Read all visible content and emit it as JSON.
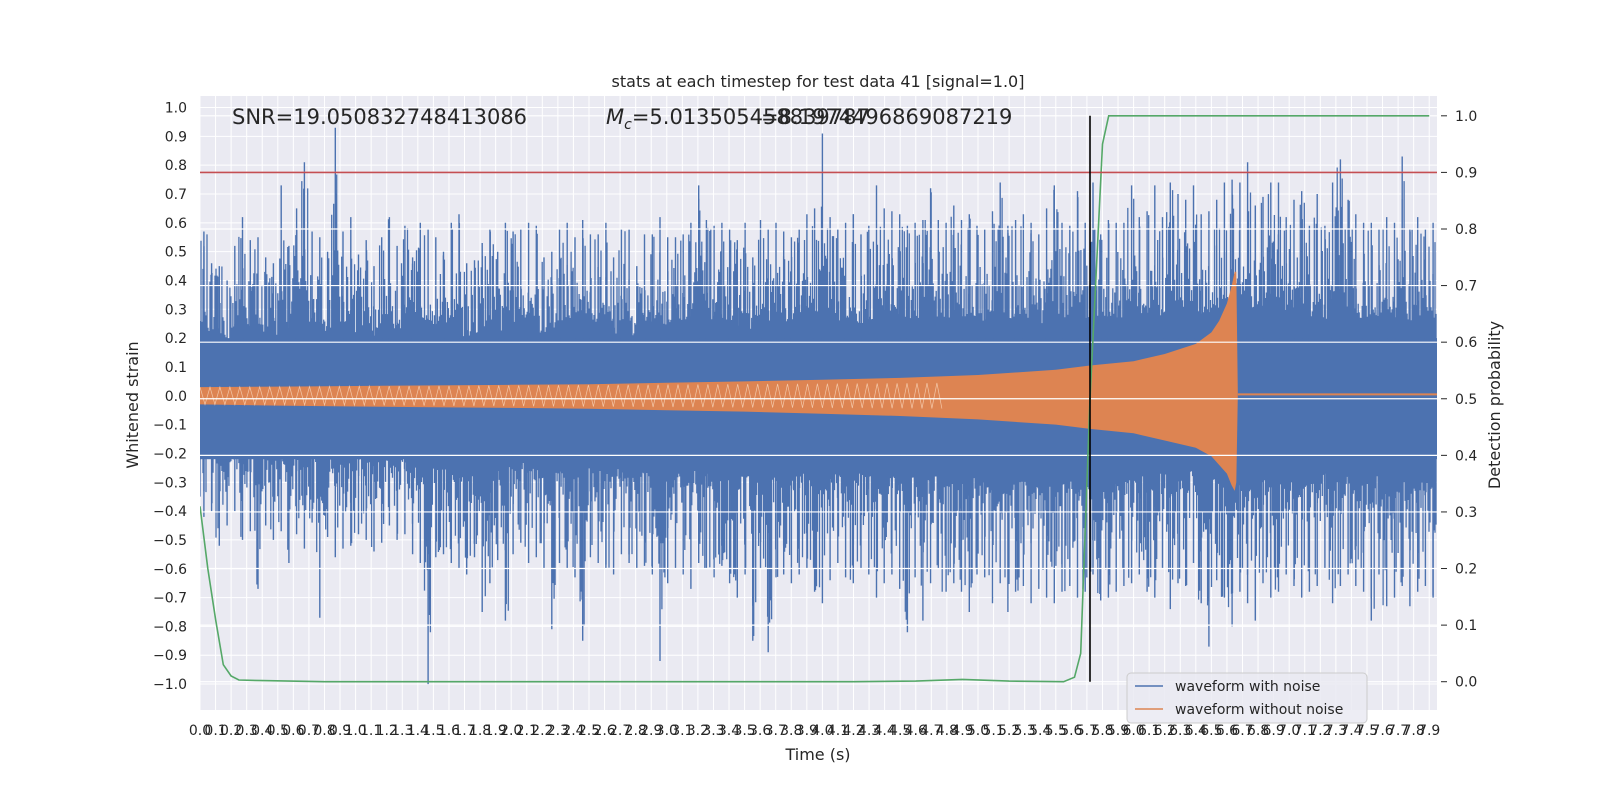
{
  "chart_data": {
    "type": "line",
    "title": "stats at each timestep for test data 41 [signal=1.0]",
    "xlabel": "Time (s)",
    "ylabel": "Whitened strain",
    "y2label": "Detection probability",
    "xlim": [
      0.0,
      7.95
    ],
    "ylim": [
      -1.09,
      1.04
    ],
    "y2lim": [
      -0.05,
      1.035
    ],
    "x_ticks": [
      0.0,
      0.1,
      0.2,
      0.3,
      0.4,
      0.5,
      0.6,
      0.7,
      0.8,
      0.9,
      1.0,
      1.1,
      1.2,
      1.3,
      1.4,
      1.5,
      1.6,
      1.7,
      1.8,
      1.9,
      2.0,
      2.1,
      2.2,
      2.3,
      2.4,
      2.5,
      2.6,
      2.7,
      2.8,
      2.9,
      3.0,
      3.1,
      3.2,
      3.3,
      3.4,
      3.5,
      3.6,
      3.7,
      3.8,
      3.9,
      4.0,
      4.1,
      4.2,
      4.3,
      4.4,
      4.5,
      4.6,
      4.7,
      4.8,
      4.9,
      5.0,
      5.1,
      5.2,
      5.3,
      5.4,
      5.5,
      5.6,
      5.7,
      5.8,
      5.9,
      6.0,
      6.1,
      6.2,
      6.3,
      6.4,
      6.5,
      6.6,
      6.7,
      6.8,
      6.9,
      7.0,
      7.1,
      7.2,
      7.3,
      7.4,
      7.5,
      7.6,
      7.7,
      7.8,
      7.9
    ],
    "x_tick_labels": [
      "0.0",
      "0.1",
      "0.2",
      "0.3",
      "0.4",
      "0.5",
      "0.6",
      "0.7",
      "0.8",
      "0.9",
      "1.0",
      "1.1",
      "1.2",
      "1.3",
      "1.4",
      "1.5",
      "1.6",
      "1.7",
      "1.8",
      "1.9",
      "2.0",
      "2.1",
      "2.2",
      "2.3",
      "2.4",
      "2.5",
      "2.6",
      "2.7",
      "2.8",
      "2.9",
      "3.0",
      "3.1",
      "3.2",
      "3.3",
      "3.4",
      "3.5",
      "3.6",
      "3.7",
      "3.8",
      "3.9",
      "4.0",
      "4.1",
      "4.2",
      "4.3",
      "4.4",
      "4.5",
      "4.6",
      "4.7",
      "4.8",
      "4.9",
      "5.0",
      "5.1",
      "5.2",
      "5.3",
      "5.4",
      "5.5",
      "5.6",
      "5.7",
      "5.8",
      "5.9",
      "6.0",
      "6.1",
      "6.2",
      "6.3",
      "6.4",
      "6.5",
      "6.6",
      "6.7",
      "6.8",
      "6.9",
      "7.0",
      "7.1",
      "7.2",
      "7.3",
      "7.4",
      "7.5",
      "7.6",
      "7.7",
      "7.8",
      "7.9"
    ],
    "y_ticks": [
      -1.0,
      -0.9,
      -0.8,
      -0.7,
      -0.6,
      -0.5,
      -0.4,
      -0.3,
      -0.2,
      -0.1,
      0.0,
      0.1,
      0.2,
      0.3,
      0.4,
      0.5,
      0.6,
      0.7,
      0.8,
      0.9,
      1.0
    ],
    "y_tick_labels": [
      "−1.0",
      "−0.9",
      "−0.8",
      "−0.7",
      "−0.6",
      "−0.5",
      "−0.4",
      "−0.3",
      "−0.2",
      "−0.1",
      "0.0",
      "0.1",
      "0.2",
      "0.3",
      "0.4",
      "0.5",
      "0.6",
      "0.7",
      "0.8",
      "0.9",
      "1.0"
    ],
    "y2_ticks": [
      0.0,
      0.1,
      0.2,
      0.3,
      0.4,
      0.5,
      0.6,
      0.7,
      0.8,
      0.9,
      1.0
    ],
    "y2_tick_labels": [
      "0.0",
      "0.1",
      "0.2",
      "0.3",
      "0.4",
      "0.5",
      "0.6",
      "0.7",
      "0.8",
      "0.9",
      "1.0"
    ],
    "annotations": {
      "snr": "SNR=19.050832748413086",
      "mc_symbol": "M",
      "mc_subscript": "c",
      "mc_value": "=5.013505458839787",
      "overlap_value": "=8.1974496869087219"
    },
    "threshold": {
      "value": 0.9,
      "axis": "y2",
      "color": "#c44e52"
    },
    "merger_line": {
      "x": 5.72,
      "color": "#000000"
    },
    "noisy_waveform": {
      "name": "waveform with noise",
      "color": "#4c72b0",
      "band_max": [
        0.57,
        0.46,
        0.45,
        0.4,
        0.52,
        0.62,
        0.54,
        0.55,
        0.48,
        0.46,
        0.73,
        0.52,
        0.65,
        0.81,
        0.57,
        0.55,
        0.5,
        0.93,
        0.57,
        0.62,
        0.49,
        0.54,
        0.45,
        0.55,
        0.62,
        0.52,
        0.59,
        0.48,
        0.6,
        0.58,
        0.55,
        0.5,
        0.6,
        0.63,
        0.46,
        0.47,
        0.53,
        0.58,
        0.5,
        0.6,
        0.57,
        0.58,
        0.6,
        0.59,
        0.48,
        0.5,
        0.58,
        0.6,
        0.55,
        0.61,
        0.56,
        0.56,
        0.6,
        0.48,
        0.58,
        0.58,
        0.45,
        0.56,
        0.56,
        0.62,
        0.55,
        0.55,
        0.56,
        0.6,
        0.73,
        0.61,
        0.59,
        0.6,
        0.58,
        0.54,
        0.6,
        0.48,
        0.61,
        0.58,
        0.6,
        0.57,
        0.55,
        0.58,
        0.63,
        0.65,
        0.91,
        0.62,
        0.58,
        0.6,
        0.63,
        0.56,
        0.59,
        0.73,
        0.65,
        0.64,
        0.63,
        0.59,
        0.6,
        0.61,
        0.72,
        0.61,
        0.6,
        0.66,
        0.61,
        0.63,
        0.59,
        0.58,
        0.64,
        0.74,
        0.59,
        0.61,
        0.63,
        0.6,
        0.56,
        0.65,
        0.73,
        0.6,
        0.59,
        0.71,
        0.6,
        0.74,
        0.56,
        0.61,
        0.6,
        0.6,
        0.73,
        0.62,
        0.64,
        0.73,
        0.62,
        0.74,
        0.7,
        0.68,
        0.73,
        0.63,
        0.64,
        0.68,
        0.74,
        0.75,
        0.74,
        0.81,
        0.66,
        0.69,
        0.74,
        0.74,
        0.62,
        0.68,
        0.71,
        0.59,
        0.7,
        0.59,
        0.74,
        0.82,
        0.68,
        0.63,
        0.6,
        0.6,
        0.58,
        0.62,
        0.6,
        0.83,
        0.58,
        0.62,
        0.58,
        0.6
      ],
      "band_min": [
        -0.42,
        -0.4,
        -0.52,
        -0.45,
        -0.4,
        -0.5,
        -0.47,
        -0.67,
        -0.45,
        -0.5,
        -0.47,
        -0.58,
        -0.48,
        -0.53,
        -0.44,
        -0.77,
        -0.49,
        -0.56,
        -0.53,
        -0.52,
        -0.48,
        -0.5,
        -0.54,
        -0.51,
        -0.45,
        -0.5,
        -0.48,
        -0.55,
        -0.58,
        -1.0,
        -0.56,
        -0.55,
        -0.58,
        -0.6,
        -0.62,
        -0.56,
        -0.75,
        -0.65,
        -0.57,
        -0.78,
        -0.55,
        -0.51,
        -0.58,
        -0.56,
        -0.6,
        -0.81,
        -0.58,
        -0.6,
        -0.63,
        -0.85,
        -0.56,
        -0.58,
        -0.6,
        -0.62,
        -0.55,
        -0.58,
        -0.6,
        -0.59,
        -0.62,
        -0.92,
        -0.65,
        -0.6,
        -0.62,
        -0.67,
        -0.58,
        -0.6,
        -0.63,
        -0.59,
        -0.65,
        -0.7,
        -0.62,
        -0.85,
        -0.6,
        -0.89,
        -0.63,
        -0.62,
        -0.65,
        -0.62,
        -0.6,
        -0.68,
        -0.72,
        -0.64,
        -0.58,
        -0.63,
        -0.65,
        -0.6,
        -0.62,
        -0.7,
        -0.65,
        -0.62,
        -0.67,
        -0.82,
        -0.63,
        -0.78,
        -0.65,
        -0.6,
        -0.68,
        -0.65,
        -0.68,
        -0.75,
        -0.62,
        -0.63,
        -0.72,
        -0.65,
        -0.75,
        -0.68,
        -0.66,
        -0.72,
        -0.67,
        -0.7,
        -0.72,
        -0.68,
        -0.66,
        -0.7,
        -0.68,
        -0.62,
        -0.71,
        -0.7,
        -0.68,
        -0.66,
        -0.65,
        -0.62,
        -0.68,
        -0.7,
        -0.6,
        -0.74,
        -0.65,
        -0.66,
        -0.58,
        -0.72,
        -0.87,
        -0.64,
        -0.7,
        -0.8,
        -0.68,
        -0.72,
        -0.78,
        -0.65,
        -0.7,
        -0.68,
        -0.62,
        -0.66,
        -0.7,
        -0.68,
        -0.66,
        -0.6,
        -0.72,
        -0.66,
        -0.62,
        -0.66,
        -0.68,
        -0.78,
        -0.62,
        -0.73,
        -0.7,
        -0.66,
        -0.73,
        -0.68,
        -0.66,
        -0.7
      ]
    },
    "clean_waveform": {
      "name": "waveform without noise",
      "color": "#dd8452",
      "t": [
        0.0,
        0.5,
        1.0,
        1.5,
        2.0,
        2.5,
        3.0,
        3.5,
        4.0,
        4.5,
        5.0,
        5.5,
        5.72,
        6.0,
        6.2,
        6.4,
        6.5,
        6.55,
        6.6,
        6.63,
        6.65,
        6.66,
        6.67
      ],
      "upper": [
        0.03,
        0.032,
        0.034,
        0.036,
        0.038,
        0.04,
        0.045,
        0.05,
        0.056,
        0.062,
        0.072,
        0.09,
        0.105,
        0.12,
        0.145,
        0.18,
        0.22,
        0.26,
        0.32,
        0.38,
        0.43,
        0.43,
        0.012
      ],
      "lower": [
        -0.03,
        -0.034,
        -0.037,
        -0.04,
        -0.042,
        -0.045,
        -0.05,
        -0.055,
        -0.062,
        -0.07,
        -0.082,
        -0.1,
        -0.115,
        -0.13,
        -0.155,
        -0.18,
        -0.21,
        -0.24,
        -0.27,
        -0.31,
        -0.33,
        -0.3,
        -0.001
      ],
      "post_merger_value": 0.005
    },
    "probability": {
      "name": "detection probability",
      "color": "#55a868",
      "t": [
        0.0,
        0.05,
        0.1,
        0.15,
        0.2,
        0.25,
        0.4,
        0.8,
        1.5,
        2.5,
        3.5,
        4.2,
        4.6,
        4.9,
        5.2,
        5.55,
        5.62,
        5.66,
        5.72,
        5.8,
        5.84,
        5.9,
        6.5,
        7.0,
        7.5,
        7.9
      ],
      "p": [
        0.31,
        0.2,
        0.11,
        0.03,
        0.01,
        0.003,
        0.002,
        0.0,
        0.0,
        0.0,
        0.0,
        0.0,
        0.001,
        0.004,
        0.001,
        0.0,
        0.008,
        0.05,
        0.5,
        0.95,
        1.0,
        1.0,
        1.0,
        1.0,
        1.0,
        1.0
      ]
    },
    "legend": {
      "placement": "lower-right",
      "items": [
        "waveform with noise",
        "waveform without noise"
      ]
    }
  }
}
